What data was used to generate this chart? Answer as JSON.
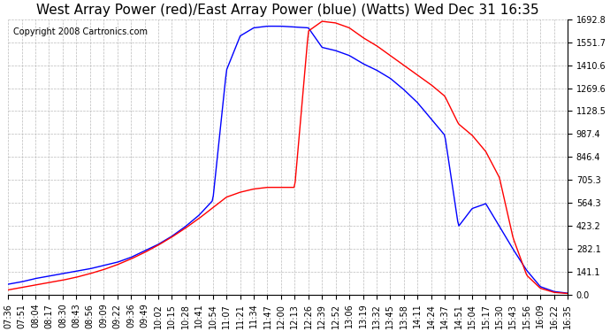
{
  "title": "West Array Power (red)/East Array Power (blue) (Watts) Wed Dec 31 16:35",
  "copyright": "Copyright 2008 Cartronics.com",
  "y_ticks": [
    0.0,
    141.1,
    282.1,
    423.2,
    564.3,
    705.3,
    846.4,
    987.4,
    1128.5,
    1269.6,
    1410.6,
    1551.7,
    1692.8
  ],
  "ymax": 1692.8,
  "ymin": 0.0,
  "background_color": "#ffffff",
  "plot_bg_color": "#ffffff",
  "grid_color": "#bbbbbb",
  "title_fontsize": 11,
  "copyright_fontsize": 7,
  "tick_fontsize": 7,
  "x_tick_labels": [
    "07:36",
    "07:51",
    "08:04",
    "08:17",
    "08:30",
    "08:43",
    "08:56",
    "09:09",
    "09:22",
    "09:36",
    "09:49",
    "10:02",
    "10:15",
    "10:28",
    "10:41",
    "10:54",
    "11:07",
    "11:21",
    "11:34",
    "11:47",
    "12:00",
    "12:13",
    "12:26",
    "12:39",
    "12:52",
    "13:06",
    "13:19",
    "13:32",
    "13:45",
    "13:58",
    "14:11",
    "14:24",
    "14:37",
    "14:51",
    "15:04",
    "15:17",
    "15:30",
    "15:43",
    "15:56",
    "16:09",
    "16:22",
    "16:35"
  ],
  "blue_data": [
    [
      0,
      65
    ],
    [
      1,
      80
    ],
    [
      2,
      100
    ],
    [
      3,
      115
    ],
    [
      4,
      130
    ],
    [
      5,
      145
    ],
    [
      6,
      160
    ],
    [
      7,
      180
    ],
    [
      8,
      200
    ],
    [
      9,
      230
    ],
    [
      10,
      270
    ],
    [
      11,
      310
    ],
    [
      12,
      360
    ],
    [
      13,
      420
    ],
    [
      14,
      490
    ],
    [
      15,
      580
    ],
    [
      16,
      1380
    ],
    [
      17,
      1590
    ],
    [
      18,
      1640
    ],
    [
      19,
      1650
    ],
    [
      20,
      1650
    ],
    [
      21,
      1645
    ],
    [
      22,
      1640
    ],
    [
      23,
      1520
    ],
    [
      24,
      1500
    ],
    [
      25,
      1470
    ],
    [
      26,
      1420
    ],
    [
      27,
      1380
    ],
    [
      28,
      1330
    ],
    [
      29,
      1260
    ],
    [
      30,
      1180
    ],
    [
      31,
      1080
    ],
    [
      32,
      980
    ],
    [
      33,
      420
    ],
    [
      34,
      530
    ],
    [
      35,
      560
    ],
    [
      36,
      420
    ],
    [
      37,
      280
    ],
    [
      38,
      150
    ],
    [
      39,
      50
    ],
    [
      40,
      20
    ],
    [
      41,
      10
    ]
  ],
  "red_data": [
    [
      0,
      30
    ],
    [
      1,
      45
    ],
    [
      2,
      60
    ],
    [
      3,
      75
    ],
    [
      4,
      90
    ],
    [
      5,
      108
    ],
    [
      6,
      130
    ],
    [
      7,
      155
    ],
    [
      8,
      185
    ],
    [
      9,
      220
    ],
    [
      10,
      260
    ],
    [
      11,
      305
    ],
    [
      12,
      355
    ],
    [
      13,
      410
    ],
    [
      14,
      470
    ],
    [
      15,
      535
    ],
    [
      16,
      600
    ],
    [
      17,
      630
    ],
    [
      18,
      650
    ],
    [
      19,
      660
    ],
    [
      20,
      660
    ],
    [
      21,
      660
    ],
    [
      22,
      1620
    ],
    [
      23,
      1680
    ],
    [
      24,
      1670
    ],
    [
      25,
      1640
    ],
    [
      26,
      1580
    ],
    [
      27,
      1530
    ],
    [
      28,
      1470
    ],
    [
      29,
      1410
    ],
    [
      30,
      1350
    ],
    [
      31,
      1290
    ],
    [
      32,
      1220
    ],
    [
      33,
      1050
    ],
    [
      34,
      980
    ],
    [
      35,
      880
    ],
    [
      36,
      720
    ],
    [
      37,
      350
    ],
    [
      38,
      120
    ],
    [
      39,
      40
    ],
    [
      40,
      15
    ],
    [
      41,
      8
    ]
  ]
}
